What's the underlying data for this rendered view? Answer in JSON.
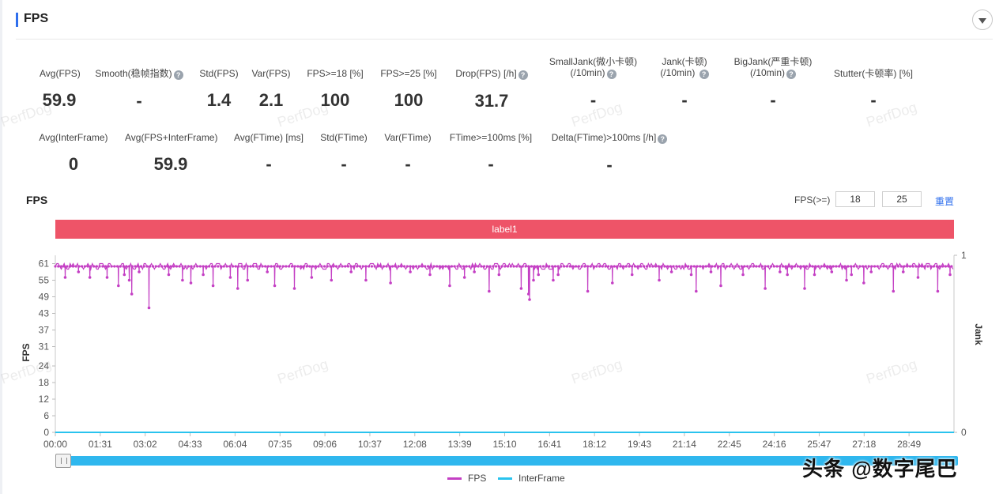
{
  "header": {
    "title": "FPS"
  },
  "stats_row1": [
    {
      "label": "Avg(FPS)",
      "value": "59.9",
      "help": false
    },
    {
      "label": "Smooth(稳帧指数)",
      "value": "-",
      "help": true
    },
    {
      "label": "Std(FPS)",
      "value": "1.4",
      "help": false
    },
    {
      "label": "Var(FPS)",
      "value": "2.1",
      "help": false
    },
    {
      "label": "FPS>=18 [%]",
      "value": "100",
      "help": false
    },
    {
      "label": "FPS>=25 [%]",
      "value": "100",
      "help": false
    },
    {
      "label": "Drop(FPS) [/h]",
      "value": "31.7",
      "help": true
    },
    {
      "label": "SmallJank(微小卡顿)",
      "label2": "(/10min)",
      "value": "-",
      "help": true
    },
    {
      "label": "Jank(卡顿)",
      "label2": "(/10min)",
      "value": "-",
      "help": true
    },
    {
      "label": "BigJank(严重卡顿)",
      "label2": "(/10min)",
      "value": "-",
      "help": true
    },
    {
      "label": "Stutter(卡顿率) [%]",
      "value": "-",
      "help": false
    }
  ],
  "stats_row2": [
    {
      "label": "Avg(InterFrame)",
      "value": "0",
      "help": false
    },
    {
      "label": "Avg(FPS+InterFrame)",
      "value": "59.9",
      "help": false
    },
    {
      "label": "Avg(FTime) [ms]",
      "value": "-",
      "help": false
    },
    {
      "label": "Std(FTime)",
      "value": "-",
      "help": false
    },
    {
      "label": "Var(FTime)",
      "value": "-",
      "help": false
    },
    {
      "label": "FTime>=100ms [%]",
      "value": "-",
      "help": false
    },
    {
      "label": "Delta(FTime)>100ms [/h]",
      "value": "-",
      "help": true
    }
  ],
  "chart_header": {
    "title": "FPS",
    "threshold_label": "FPS(>=)",
    "threshold_low": "18",
    "threshold_high": "25",
    "reset_label": "重置",
    "segment_label": "label1"
  },
  "watermark_text": "PerfDog",
  "help_glyph": "?",
  "brand_overlay": "头条 @数字尾巴",
  "colors": {
    "fps": "#c43fc4",
    "interframe": "#29c3ee",
    "label_bar": "#ee5468",
    "accent": "#2f6fed"
  },
  "chart_data": {
    "type": "line",
    "xlabel": "",
    "ylabel": "FPS",
    "y2label": "Jank",
    "y_ticks": [
      0,
      6,
      12,
      18,
      24,
      31,
      37,
      43,
      49,
      55,
      61
    ],
    "ylim": [
      0,
      64
    ],
    "y2_ticks": [
      0,
      1
    ],
    "x_ticks": [
      "00:00",
      "01:31",
      "03:02",
      "04:33",
      "06:04",
      "07:35",
      "09:06",
      "10:37",
      "12:08",
      "13:39",
      "15:10",
      "16:41",
      "18:12",
      "19:43",
      "21:14",
      "22:45",
      "24:16",
      "25:47",
      "27:18",
      "28:49"
    ],
    "x_range_seconds": [
      0,
      1823
    ],
    "baseline": 60,
    "dips": [
      [
        20,
        56
      ],
      [
        47,
        58
      ],
      [
        70,
        56
      ],
      [
        105,
        56
      ],
      [
        128,
        53
      ],
      [
        140,
        57
      ],
      [
        150,
        55
      ],
      [
        155,
        50
      ],
      [
        170,
        58
      ],
      [
        190,
        45
      ],
      [
        230,
        57
      ],
      [
        258,
        55
      ],
      [
        275,
        54
      ],
      [
        300,
        57
      ],
      [
        320,
        53
      ],
      [
        355,
        56
      ],
      [
        370,
        52
      ],
      [
        390,
        55
      ],
      [
        430,
        58
      ],
      [
        445,
        53
      ],
      [
        485,
        52
      ],
      [
        520,
        56
      ],
      [
        560,
        55
      ],
      [
        600,
        58
      ],
      [
        630,
        55
      ],
      [
        680,
        54
      ],
      [
        720,
        58
      ],
      [
        760,
        57
      ],
      [
        800,
        53
      ],
      [
        830,
        56
      ],
      [
        850,
        58
      ],
      [
        880,
        51
      ],
      [
        900,
        57
      ],
      [
        945,
        52
      ],
      [
        960,
        50
      ],
      [
        962,
        48
      ],
      [
        970,
        55
      ],
      [
        980,
        57
      ],
      [
        1010,
        55
      ],
      [
        1020,
        57
      ],
      [
        1080,
        51
      ],
      [
        1130,
        54
      ],
      [
        1170,
        57
      ],
      [
        1225,
        55
      ],
      [
        1250,
        58
      ],
      [
        1290,
        57
      ],
      [
        1300,
        51
      ],
      [
        1330,
        58
      ],
      [
        1350,
        53
      ],
      [
        1395,
        57
      ],
      [
        1440,
        52
      ],
      [
        1470,
        58
      ],
      [
        1485,
        57
      ],
      [
        1520,
        52
      ],
      [
        1540,
        57
      ],
      [
        1575,
        58
      ],
      [
        1605,
        55
      ],
      [
        1615,
        57
      ],
      [
        1640,
        54
      ],
      [
        1655,
        58
      ],
      [
        1700,
        51
      ],
      [
        1720,
        58
      ],
      [
        1750,
        56
      ],
      [
        1790,
        51
      ],
      [
        1815,
        57
      ]
    ],
    "interframe_value": 0,
    "series": [
      {
        "name": "FPS",
        "color": "#c43fc4"
      },
      {
        "name": "InterFrame",
        "color": "#29c3ee"
      }
    ]
  }
}
